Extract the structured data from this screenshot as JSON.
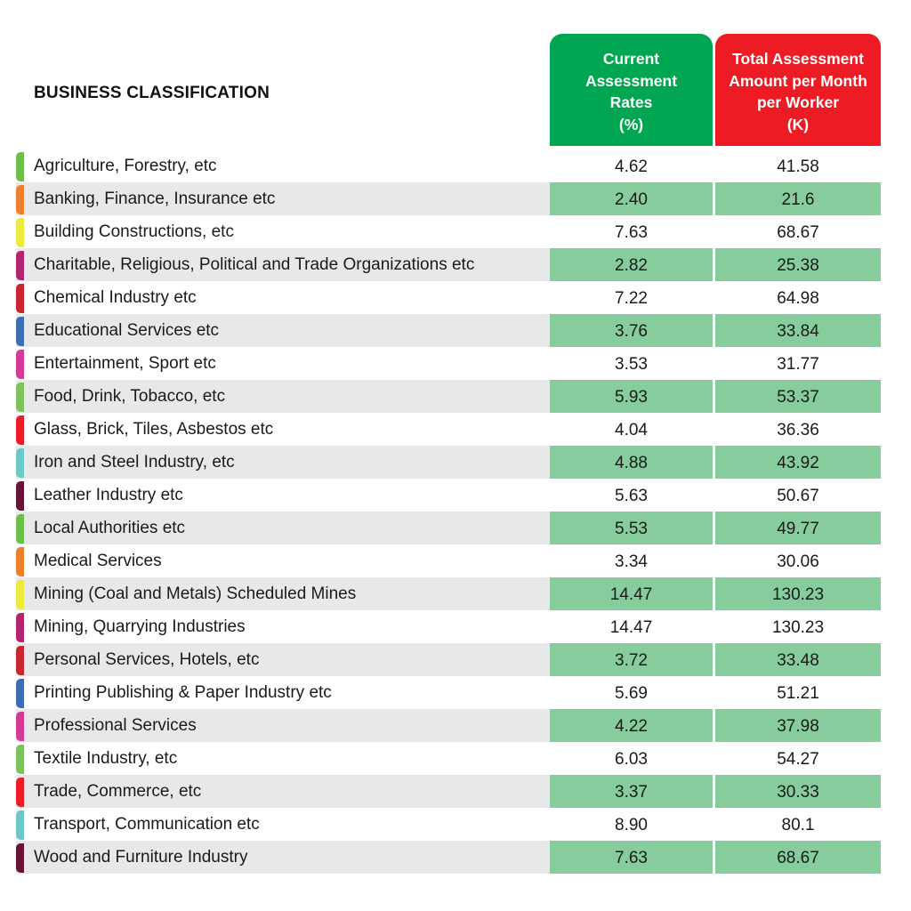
{
  "header": {
    "classification_label": "BUSINESS CLASSIFICATION",
    "rate_label": [
      "Current",
      "Assessment",
      "Rates",
      "(%)"
    ],
    "amount_label": [
      "Total Assessment",
      "Amount per Month",
      "per Worker",
      "(K)"
    ]
  },
  "colors": {
    "rate_header": "#00a651",
    "amount_header": "#ed1c24",
    "highlight_cell": "#86cc9c",
    "stripe": "#e7e8ea"
  },
  "rows": [
    {
      "name": "Agriculture, Forestry, etc",
      "rate": "4.62",
      "amount": "41.58",
      "color": "#6cbf4a"
    },
    {
      "name": "Banking, Finance, Insurance etc",
      "rate": "2.40",
      "amount": "21.6",
      "color": "#ee7f2d"
    },
    {
      "name": "Building Constructions, etc",
      "rate": "7.63",
      "amount": "68.67",
      "color": "#ecea3a"
    },
    {
      "name": "Charitable, Religious, Political and Trade Organizations etc",
      "rate": "2.82",
      "amount": "25.38",
      "color": "#b5246f"
    },
    {
      "name": "Chemical Industry etc",
      "rate": "7.22",
      "amount": "64.98",
      "color": "#c9262f"
    },
    {
      "name": "Educational Services etc",
      "rate": "3.76",
      "amount": "33.84",
      "color": "#3f6db4"
    },
    {
      "name": "Entertainment, Sport etc",
      "rate": "3.53",
      "amount": "31.77",
      "color": "#d63a96"
    },
    {
      "name": "Food, Drink, Tobacco, etc",
      "rate": "5.93",
      "amount": "53.37",
      "color": "#7cc35a"
    },
    {
      "name": "Glass, Brick, Tiles, Asbestos etc",
      "rate": "4.04",
      "amount": "36.36",
      "color": "#ec1d26"
    },
    {
      "name": "Iron and Steel Industry, etc",
      "rate": "4.88",
      "amount": "43.92",
      "color": "#6ec8c6"
    },
    {
      "name": "Leather Industry etc",
      "rate": "5.63",
      "amount": "50.67",
      "color": "#6a1338"
    },
    {
      "name": "Local Authorities etc",
      "rate": "5.53",
      "amount": "49.77",
      "color": "#6cbf4a"
    },
    {
      "name": "Medical Services",
      "rate": "3.34",
      "amount": "30.06",
      "color": "#ee7f2d"
    },
    {
      "name": "Mining (Coal and Metals) Scheduled Mines",
      "rate": "14.47",
      "amount": "130.23",
      "color": "#ecea3a"
    },
    {
      "name": "Mining, Quarrying Industries",
      "rate": "14.47",
      "amount": "130.23",
      "color": "#b5246f"
    },
    {
      "name": "Personal Services, Hotels, etc",
      "rate": "3.72",
      "amount": "33.48",
      "color": "#c9262f"
    },
    {
      "name": "Printing Publishing & Paper Industry etc",
      "rate": "5.69",
      "amount": "51.21",
      "color": "#3f6db4"
    },
    {
      "name": "Professional Services",
      "rate": "4.22",
      "amount": "37.98",
      "color": "#d63a96"
    },
    {
      "name": "Textile Industry, etc",
      "rate": "6.03",
      "amount": "54.27",
      "color": "#7cc35a"
    },
    {
      "name": "Trade, Commerce, etc",
      "rate": "3.37",
      "amount": "30.33",
      "color": "#ec1d26"
    },
    {
      "name": "Transport, Communication etc",
      "rate": "8.90",
      "amount": "80.1",
      "color": "#6ec8c6"
    },
    {
      "name": "Wood and Furniture Industry",
      "rate": "7.63",
      "amount": "68.67",
      "color": "#6a1338"
    }
  ]
}
